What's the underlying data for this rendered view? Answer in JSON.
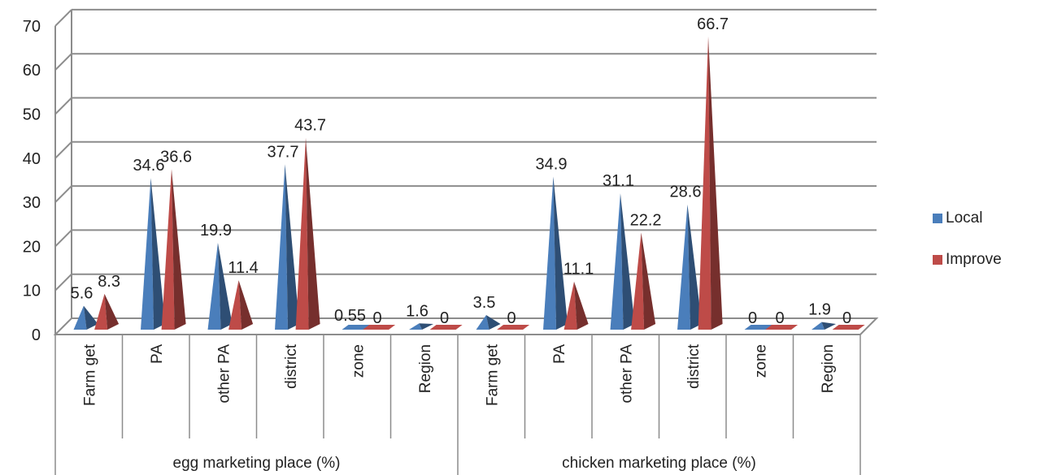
{
  "chart_data": {
    "type": "bar",
    "title": "",
    "xlabel": "",
    "ylabel": "",
    "ylim": [
      0,
      70
    ],
    "yticks": [
      0,
      10,
      20,
      30,
      40,
      50,
      60,
      70
    ],
    "groups": [
      {
        "label": "egg marketing  place (%)",
        "categories": [
          "Farm get",
          "PA",
          "other PA",
          "district",
          "zone",
          "Region"
        ]
      },
      {
        "label": "chicken marketing  place (%)",
        "categories": [
          "Farm get",
          "PA",
          "other PA",
          "district",
          "zone",
          "Region"
        ]
      }
    ],
    "series": [
      {
        "name": "Local",
        "color": "#4a7ebb",
        "values": [
          5.6,
          34.6,
          19.9,
          37.7,
          0.55,
          1.6,
          3.5,
          34.9,
          31.1,
          28.6,
          0,
          1.9
        ]
      },
      {
        "name": "Improve",
        "color": "#be4b48",
        "values": [
          8.3,
          36.6,
          11.4,
          43.7,
          0,
          0,
          0,
          11.1,
          22.2,
          66.7,
          0,
          0
        ]
      }
    ],
    "grid": true,
    "legend_position": "right",
    "style": "3d-cone"
  }
}
